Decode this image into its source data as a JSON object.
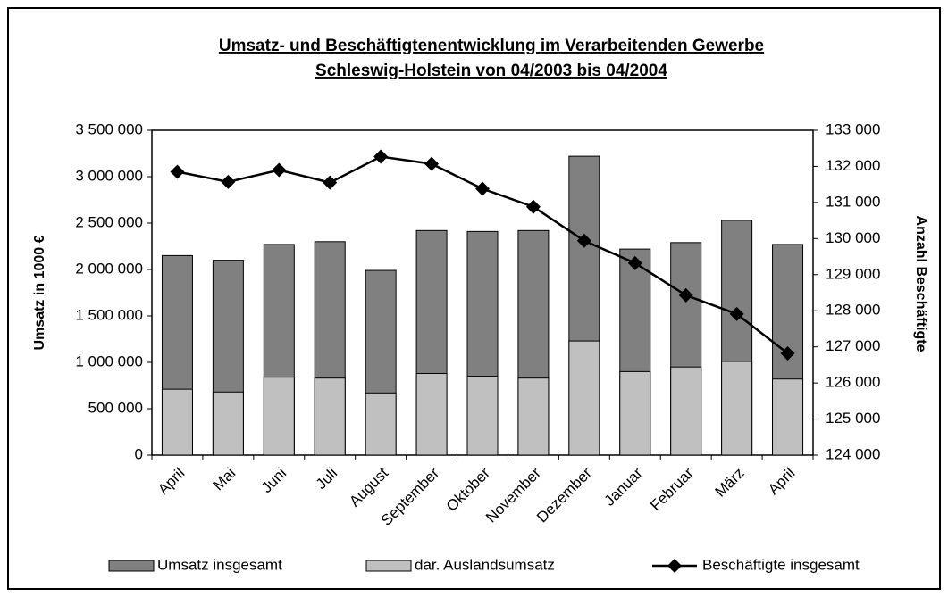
{
  "chart_data": {
    "type": "bar",
    "title": "Umsatz- und Beschäftigtenentwicklung im Verarbeitenden Gewerbe",
    "subtitle": "Schleswig-Holstein von 04/2003 bis 04/2004",
    "y_label": "Umsatz in 1000 €",
    "y2_label": "Anzahl Beschäftigte",
    "categories": [
      "April",
      "Mai",
      "Juni",
      "Juli",
      "August",
      "September",
      "Oktober",
      "November",
      "Dezember",
      "Januar",
      "Februar",
      "März",
      "April"
    ],
    "series": [
      {
        "name": "Umsatz insgesamt",
        "type": "bar",
        "color": "#808080",
        "values": [
          2150000,
          2100000,
          2270000,
          2300000,
          1990000,
          2420000,
          2410000,
          2420000,
          3220000,
          2220000,
          2290000,
          2530000,
          2270000
        ]
      },
      {
        "name": "dar. Auslandsumsatz",
        "type": "bar",
        "color": "#c0c0c0",
        "values": [
          710000,
          680000,
          840000,
          830000,
          670000,
          880000,
          850000,
          830000,
          1230000,
          900000,
          950000,
          1010000,
          820000
        ]
      },
      {
        "name": "Beschäftigte insgesamt",
        "type": "line",
        "axis": "y2",
        "color": "#000000",
        "values": [
          131850,
          131570,
          131900,
          131550,
          132270,
          132070,
          131380,
          130880,
          129940,
          129320,
          128430,
          127910,
          126820
        ]
      }
    ],
    "ylim": [
      0,
      3500000
    ],
    "yticks": [
      0,
      {
        "value": 500000,
        "label": "500 000"
      },
      {
        "value": 1000000,
        "label": "1 000 000"
      },
      {
        "value": 1500000,
        "label": "1 500 000"
      },
      {
        "value": 2000000,
        "label": "2 000 000"
      },
      {
        "value": 2500000,
        "label": "2 500 000"
      },
      {
        "value": 3000000,
        "label": "3 000 000"
      },
      {
        "value": 3500000,
        "label": "3 500 000"
      }
    ],
    "y2lim": [
      124000,
      133000
    ],
    "y2ticks": [
      {
        "value": 124000,
        "label": "124 000"
      },
      {
        "value": 125000,
        "label": "125 000"
      },
      {
        "value": 126000,
        "label": "126 000"
      },
      {
        "value": 127000,
        "label": "127 000"
      },
      {
        "value": 128000,
        "label": "128 000"
      },
      {
        "value": 129000,
        "label": "129 000"
      },
      {
        "value": 130000,
        "label": "130 000"
      },
      {
        "value": 131000,
        "label": "131 000"
      },
      {
        "value": 132000,
        "label": "132 000"
      },
      {
        "value": 133000,
        "label": "133 000"
      }
    ],
    "grid": false,
    "legend": "bottom"
  }
}
